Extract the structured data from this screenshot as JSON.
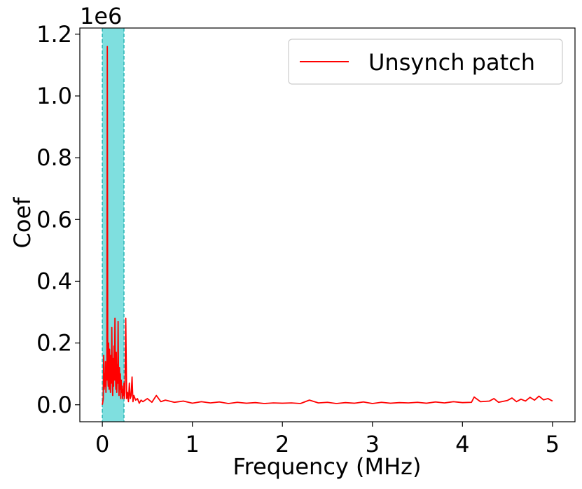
{
  "chart_data": {
    "type": "line",
    "xlabel": "Frequency (MHz)",
    "ylabel": "Coef",
    "y_offset_label": "1e6",
    "xlim": [
      -0.25,
      5.25
    ],
    "ylim": [
      -0.055,
      1.22
    ],
    "x_ticks": [
      0,
      1,
      2,
      3,
      4,
      5
    ],
    "x_tick_labels": [
      "0",
      "1",
      "2",
      "3",
      "4",
      "5"
    ],
    "y_ticks": [
      0.0,
      0.2,
      0.4,
      0.6,
      0.8,
      1.0,
      1.2
    ],
    "y_tick_labels": [
      "0.0",
      "0.2",
      "0.4",
      "0.6",
      "0.8",
      "1.0",
      "1.2"
    ],
    "grid": false,
    "legend": {
      "position": "top-right",
      "entries": [
        "Unsynch patch"
      ]
    },
    "shaded_band": {
      "x_range": [
        0,
        0.24
      ],
      "color": "#7fdfdf",
      "edge_color": "#2ab5b5"
    },
    "series": [
      {
        "name": "Unsynch patch",
        "color": "#ff0000",
        "points": [
          [
            0.0,
            0.0
          ],
          [
            0.01,
            0.02
          ],
          [
            0.015,
            0.16
          ],
          [
            0.02,
            0.05
          ],
          [
            0.025,
            0.1
          ],
          [
            0.03,
            0.06
          ],
          [
            0.035,
            0.14
          ],
          [
            0.04,
            0.04
          ],
          [
            0.045,
            0.12
          ],
          [
            0.05,
            0.08
          ],
          [
            0.055,
            1.16
          ],
          [
            0.06,
            0.1
          ],
          [
            0.065,
            0.06
          ],
          [
            0.07,
            0.2
          ],
          [
            0.075,
            0.05
          ],
          [
            0.08,
            0.18
          ],
          [
            0.085,
            0.09
          ],
          [
            0.09,
            0.04
          ],
          [
            0.095,
            0.16
          ],
          [
            0.1,
            0.07
          ],
          [
            0.105,
            0.25
          ],
          [
            0.11,
            0.1
          ],
          [
            0.115,
            0.03
          ],
          [
            0.12,
            0.15
          ],
          [
            0.125,
            0.06
          ],
          [
            0.13,
            0.19
          ],
          [
            0.135,
            0.08
          ],
          [
            0.14,
            0.28
          ],
          [
            0.145,
            0.11
          ],
          [
            0.15,
            0.05
          ],
          [
            0.155,
            0.17
          ],
          [
            0.16,
            0.04
          ],
          [
            0.165,
            0.13
          ],
          [
            0.17,
            0.07
          ],
          [
            0.175,
            0.27
          ],
          [
            0.18,
            0.09
          ],
          [
            0.185,
            0.03
          ],
          [
            0.19,
            0.12
          ],
          [
            0.195,
            0.05
          ],
          [
            0.2,
            0.1
          ],
          [
            0.205,
            0.02
          ],
          [
            0.21,
            0.08
          ],
          [
            0.215,
            0.04
          ],
          [
            0.22,
            0.06
          ],
          [
            0.225,
            0.02
          ],
          [
            0.23,
            0.05
          ],
          [
            0.235,
            0.03
          ],
          [
            0.24,
            0.07
          ],
          [
            0.245,
            0.02
          ],
          [
            0.25,
            0.04
          ],
          [
            0.26,
            0.28
          ],
          [
            0.27,
            0.02
          ],
          [
            0.28,
            0.04
          ],
          [
            0.29,
            0.01
          ],
          [
            0.3,
            0.07
          ],
          [
            0.31,
            0.02
          ],
          [
            0.32,
            0.03
          ],
          [
            0.33,
            0.09
          ],
          [
            0.34,
            0.01
          ],
          [
            0.35,
            0.03
          ],
          [
            0.37,
            0.015
          ],
          [
            0.39,
            0.02
          ],
          [
            0.41,
            0.005
          ],
          [
            0.43,
            0.015
          ],
          [
            0.45,
            0.01
          ],
          [
            0.5,
            0.02
          ],
          [
            0.55,
            0.008
          ],
          [
            0.6,
            0.03
          ],
          [
            0.65,
            0.01
          ],
          [
            0.7,
            0.015
          ],
          [
            0.8,
            0.008
          ],
          [
            0.9,
            0.012
          ],
          [
            1.0,
            0.005
          ],
          [
            1.1,
            0.01
          ],
          [
            1.2,
            0.006
          ],
          [
            1.3,
            0.009
          ],
          [
            1.4,
            0.004
          ],
          [
            1.5,
            0.008
          ],
          [
            1.6,
            0.005
          ],
          [
            1.7,
            0.007
          ],
          [
            1.8,
            0.004
          ],
          [
            1.9,
            0.006
          ],
          [
            2.0,
            0.005
          ],
          [
            2.1,
            0.006
          ],
          [
            2.2,
            0.004
          ],
          [
            2.3,
            0.015
          ],
          [
            2.4,
            0.006
          ],
          [
            2.5,
            0.008
          ],
          [
            2.6,
            0.004
          ],
          [
            2.7,
            0.007
          ],
          [
            2.8,
            0.005
          ],
          [
            2.9,
            0.009
          ],
          [
            3.0,
            0.004
          ],
          [
            3.1,
            0.008
          ],
          [
            3.2,
            0.005
          ],
          [
            3.3,
            0.007
          ],
          [
            3.4,
            0.006
          ],
          [
            3.5,
            0.008
          ],
          [
            3.6,
            0.005
          ],
          [
            3.7,
            0.009
          ],
          [
            3.8,
            0.006
          ],
          [
            3.9,
            0.01
          ],
          [
            4.0,
            0.007
          ],
          [
            4.1,
            0.008
          ],
          [
            4.13,
            0.025
          ],
          [
            4.2,
            0.01
          ],
          [
            4.3,
            0.012
          ],
          [
            4.35,
            0.02
          ],
          [
            4.4,
            0.008
          ],
          [
            4.5,
            0.014
          ],
          [
            4.55,
            0.022
          ],
          [
            4.6,
            0.01
          ],
          [
            4.65,
            0.018
          ],
          [
            4.7,
            0.012
          ],
          [
            4.75,
            0.024
          ],
          [
            4.8,
            0.015
          ],
          [
            4.85,
            0.028
          ],
          [
            4.9,
            0.016
          ],
          [
            4.95,
            0.02
          ],
          [
            5.0,
            0.012
          ]
        ]
      }
    ]
  }
}
